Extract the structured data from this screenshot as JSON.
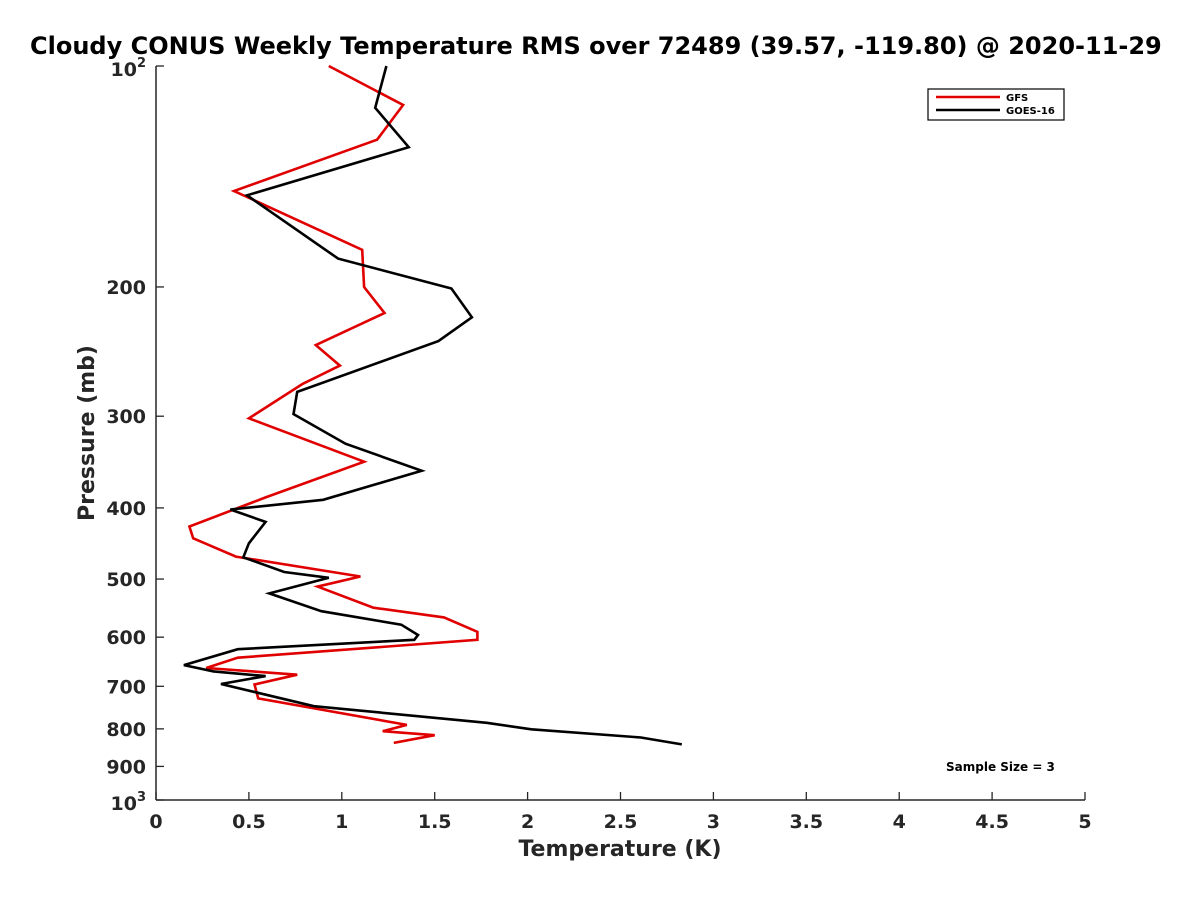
{
  "chart_data": {
    "type": "line",
    "title": "Cloudy CONUS Weekly Temperature RMS over 72489 (39.57, -119.80) @ 2020-11-29",
    "xlabel": "Temperature (K)",
    "ylabel": "Pressure (mb)",
    "xlim": [
      0,
      5
    ],
    "ylim": [
      100,
      1000
    ],
    "y_scale": "log",
    "y_reversed": true,
    "x_ticks": [
      {
        "value": 0,
        "label": "0"
      },
      {
        "value": 0.5,
        "label": "0.5"
      },
      {
        "value": 1,
        "label": "1"
      },
      {
        "value": 1.5,
        "label": "1.5"
      },
      {
        "value": 2,
        "label": "2"
      },
      {
        "value": 2.5,
        "label": "2.5"
      },
      {
        "value": 3,
        "label": "3"
      },
      {
        "value": 3.5,
        "label": "3.5"
      },
      {
        "value": 4,
        "label": "4"
      },
      {
        "value": 4.5,
        "label": "4.5"
      },
      {
        "value": 5,
        "label": "5"
      }
    ],
    "y_ticks": [
      {
        "value": 200,
        "label": "200"
      },
      {
        "value": 300,
        "label": "300"
      },
      {
        "value": 400,
        "label": "400"
      },
      {
        "value": 500,
        "label": "500"
      },
      {
        "value": 600,
        "label": "600"
      },
      {
        "value": 700,
        "label": "700"
      },
      {
        "value": 800,
        "label": "800"
      },
      {
        "value": 900,
        "label": "900"
      }
    ],
    "y_power_ticks": [
      {
        "value": 100,
        "base": "10",
        "exp": "2"
      },
      {
        "value": 1000,
        "base": "10",
        "exp": "3"
      }
    ],
    "grid": false,
    "legend": "top-right",
    "series": [
      {
        "name": "GFS",
        "color": "#e00000",
        "points": [
          [
            0.93,
            100
          ],
          [
            1.33,
            113
          ],
          [
            1.19,
            126
          ],
          [
            0.42,
            148
          ],
          [
            1.11,
            178
          ],
          [
            1.12,
            200
          ],
          [
            1.23,
            217
          ],
          [
            0.86,
            240
          ],
          [
            0.99,
            256
          ],
          [
            0.79,
            271
          ],
          [
            0.5,
            302
          ],
          [
            1.12,
            346
          ],
          [
            0.59,
            387
          ],
          [
            0.18,
            424
          ],
          [
            0.2,
            440
          ],
          [
            0.43,
            466
          ],
          [
            1.1,
            496
          ],
          [
            0.87,
            512
          ],
          [
            1.17,
            547
          ],
          [
            1.55,
            564
          ],
          [
            1.73,
            590
          ],
          [
            1.73,
            605
          ],
          [
            0.44,
            640
          ],
          [
            0.27,
            661
          ],
          [
            0.76,
            675
          ],
          [
            0.53,
            696
          ],
          [
            0.55,
            727
          ],
          [
            1.35,
            790
          ],
          [
            1.22,
            806
          ],
          [
            1.5,
            816
          ],
          [
            1.28,
            836
          ]
        ]
      },
      {
        "name": "GOES-16",
        "color": "#000000",
        "points": [
          [
            1.24,
            100
          ],
          [
            1.18,
            114
          ],
          [
            1.36,
            129
          ],
          [
            0.49,
            150
          ],
          [
            0.98,
            183
          ],
          [
            1.59,
            201
          ],
          [
            1.7,
            220
          ],
          [
            1.52,
            237
          ],
          [
            0.76,
            278
          ],
          [
            0.74,
            298
          ],
          [
            1.02,
            327
          ],
          [
            1.43,
            356
          ],
          [
            1.19,
            371
          ],
          [
            0.9,
            390
          ],
          [
            0.4,
            402
          ],
          [
            0.59,
            418
          ],
          [
            0.5,
            447
          ],
          [
            0.47,
            467
          ],
          [
            0.69,
            489
          ],
          [
            0.93,
            498
          ],
          [
            0.61,
            523
          ],
          [
            0.89,
            553
          ],
          [
            1.32,
            577
          ],
          [
            1.41,
            596
          ],
          [
            1.39,
            605
          ],
          [
            0.44,
            623
          ],
          [
            0.15,
            655
          ],
          [
            0.31,
            668
          ],
          [
            0.59,
            678
          ],
          [
            0.35,
            695
          ],
          [
            0.85,
            745
          ],
          [
            1.78,
            785
          ],
          [
            2.02,
            801
          ],
          [
            2.61,
            822
          ],
          [
            2.83,
            840
          ]
        ]
      }
    ],
    "annotations": [
      {
        "text": "Sample Size = 3"
      }
    ]
  }
}
